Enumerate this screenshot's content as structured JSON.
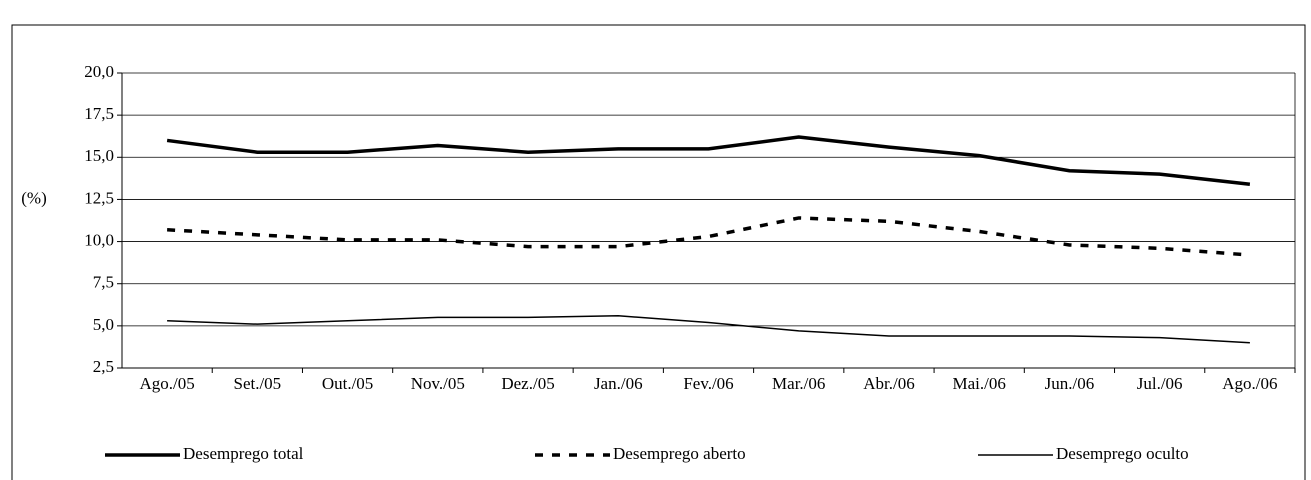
{
  "chart_data": {
    "type": "line",
    "y_label": "(%)",
    "categories": [
      "Ago./05",
      "Set./05",
      "Out./05",
      "Nov./05",
      "Dez./05",
      "Jan./06",
      "Fev./06",
      "Mar./06",
      "Abr./06",
      "Mai./06",
      "Jun./06",
      "Jul./06",
      "Ago./06"
    ],
    "series": [
      {
        "name": "Desemprego total",
        "color": "#000000",
        "line_width": 3.5,
        "dashed": false,
        "values": [
          16.0,
          15.3,
          15.3,
          15.7,
          15.3,
          15.5,
          15.5,
          16.2,
          15.6,
          15.1,
          14.2,
          14.0,
          13.4
        ]
      },
      {
        "name": "Desemprego aberto",
        "color": "#000000",
        "line_width": 3.5,
        "dashed": true,
        "values": [
          10.7,
          10.4,
          10.1,
          10.1,
          9.7,
          9.7,
          10.3,
          11.4,
          11.2,
          10.6,
          9.8,
          9.6,
          9.2
        ]
      },
      {
        "name": "Desemprego oculto",
        "color": "#000000",
        "line_width": 1.5,
        "dashed": false,
        "values": [
          5.3,
          5.1,
          5.3,
          5.5,
          5.5,
          5.6,
          5.2,
          4.7,
          4.4,
          4.4,
          4.4,
          4.3,
          4.0
        ]
      }
    ],
    "ylim": [
      2.5,
      20
    ],
    "yticks": [
      {
        "value": 2.5,
        "label": "2,5"
      },
      {
        "value": 5,
        "label": "5,0"
      },
      {
        "value": 7.5,
        "label": "7,5"
      },
      {
        "value": 10,
        "label": "10,0"
      },
      {
        "value": 12.5,
        "label": "12,5"
      },
      {
        "value": 15,
        "label": "15,0"
      },
      {
        "value": 17.5,
        "label": "17,5"
      },
      {
        "value": 20,
        "label": "20,0"
      }
    ],
    "grid": true,
    "legend": "bottom"
  }
}
